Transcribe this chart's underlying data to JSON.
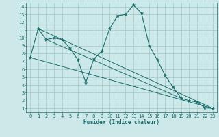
{
  "title": "",
  "xlabel": "Humidex (Indice chaleur)",
  "bg_color": "#cce8e8",
  "line_color": "#1a6b6b",
  "grid_color": "#a8cccc",
  "xlim": [
    -0.5,
    23.5
  ],
  "ylim": [
    0.5,
    14.5
  ],
  "yticks": [
    1,
    2,
    3,
    4,
    5,
    6,
    7,
    8,
    9,
    10,
    11,
    12,
    13,
    14
  ],
  "xticks": [
    0,
    1,
    2,
    3,
    4,
    5,
    6,
    7,
    8,
    9,
    10,
    11,
    12,
    13,
    14,
    15,
    16,
    17,
    18,
    19,
    20,
    21,
    22,
    23
  ],
  "main_line": {
    "x": [
      0,
      1,
      2,
      3,
      4,
      5,
      6,
      7,
      8,
      9,
      10,
      11,
      12,
      13,
      14,
      15,
      16,
      17,
      18,
      19,
      20,
      21,
      22,
      23
    ],
    "y": [
      7.5,
      11.2,
      9.8,
      10.0,
      9.8,
      8.7,
      7.2,
      4.3,
      7.3,
      8.3,
      11.2,
      12.8,
      13.0,
      14.2,
      13.2,
      9.0,
      7.2,
      5.2,
      3.7,
      2.3,
      2.0,
      1.8,
      1.1,
      1.0
    ]
  },
  "ref_lines": [
    {
      "x": [
        0,
        23
      ],
      "y": [
        7.5,
        1.0
      ]
    },
    {
      "x": [
        1,
        23
      ],
      "y": [
        11.2,
        1.0
      ]
    },
    {
      "x": [
        2,
        19
      ],
      "y": [
        9.8,
        2.3
      ]
    }
  ],
  "xlabel_fontsize": 5.5,
  "tick_fontsize": 5
}
